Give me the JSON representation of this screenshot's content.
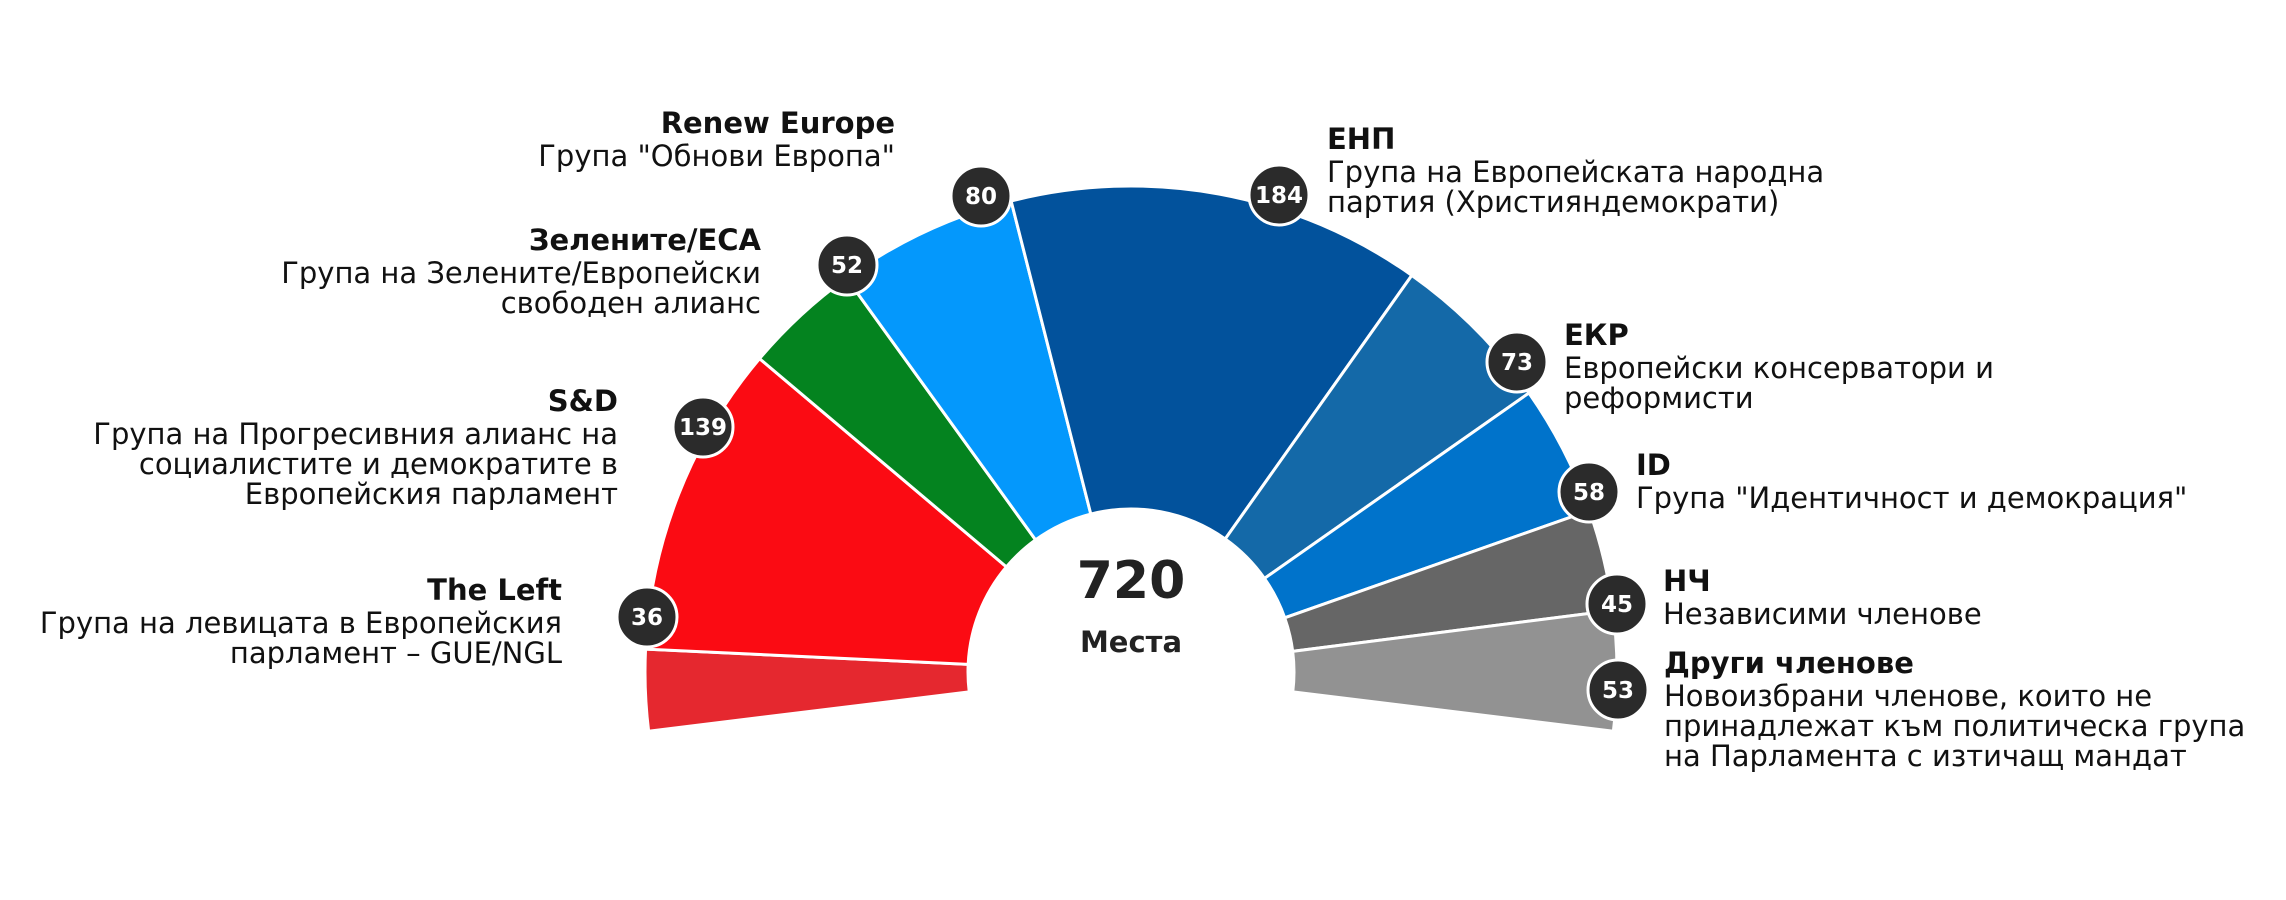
{
  "chart_data": {
    "type": "pie",
    "total": "720",
    "total_label": "Места",
    "series": [
      {
        "value": 36,
        "color": "#e5282f",
        "title": "The Left",
        "desc": [
          "Група на левицата в Европейския",
          "парламент – GUE/NGL"
        ]
      },
      {
        "value": 139,
        "color": "#fb0b13",
        "title": "S&D",
        "desc": [
          "Група на Прогресивния алианс на",
          "социалистите и демократите в",
          "Европейския парламент"
        ]
      },
      {
        "value": 52,
        "color": "#04831f",
        "title": "Зелените/ЕСА",
        "desc": [
          "Група на Зелените/Европейски",
          "свободен алианс"
        ]
      },
      {
        "value": 80,
        "color": "#0498fc",
        "title": "Renew Europe",
        "desc": [
          "Група \"Обнови Европа\""
        ]
      },
      {
        "value": 184,
        "color": "#02529c",
        "title": "ЕНП",
        "desc": [
          "Група на Европейската народна",
          "партия (Християндемократи)"
        ]
      },
      {
        "value": 73,
        "color": "#1469a8",
        "title": "ЕКР",
        "desc": [
          "Европейски консерватори и",
          "реформисти"
        ]
      },
      {
        "value": 58,
        "color": "#0073cb",
        "title": "ID",
        "desc": [
          "Група \"Идентичност и демокрация\""
        ]
      },
      {
        "value": 45,
        "color": "#666666",
        "title": "НЧ",
        "desc": [
          "Независими членове"
        ]
      },
      {
        "value": 53,
        "color": "#929292",
        "title": "Други членове",
        "desc": [
          "Новоизбрани членове, които не",
          "принадлежат към политическа група",
          "на Парламента с изтичащ мандат"
        ]
      }
    ]
  }
}
